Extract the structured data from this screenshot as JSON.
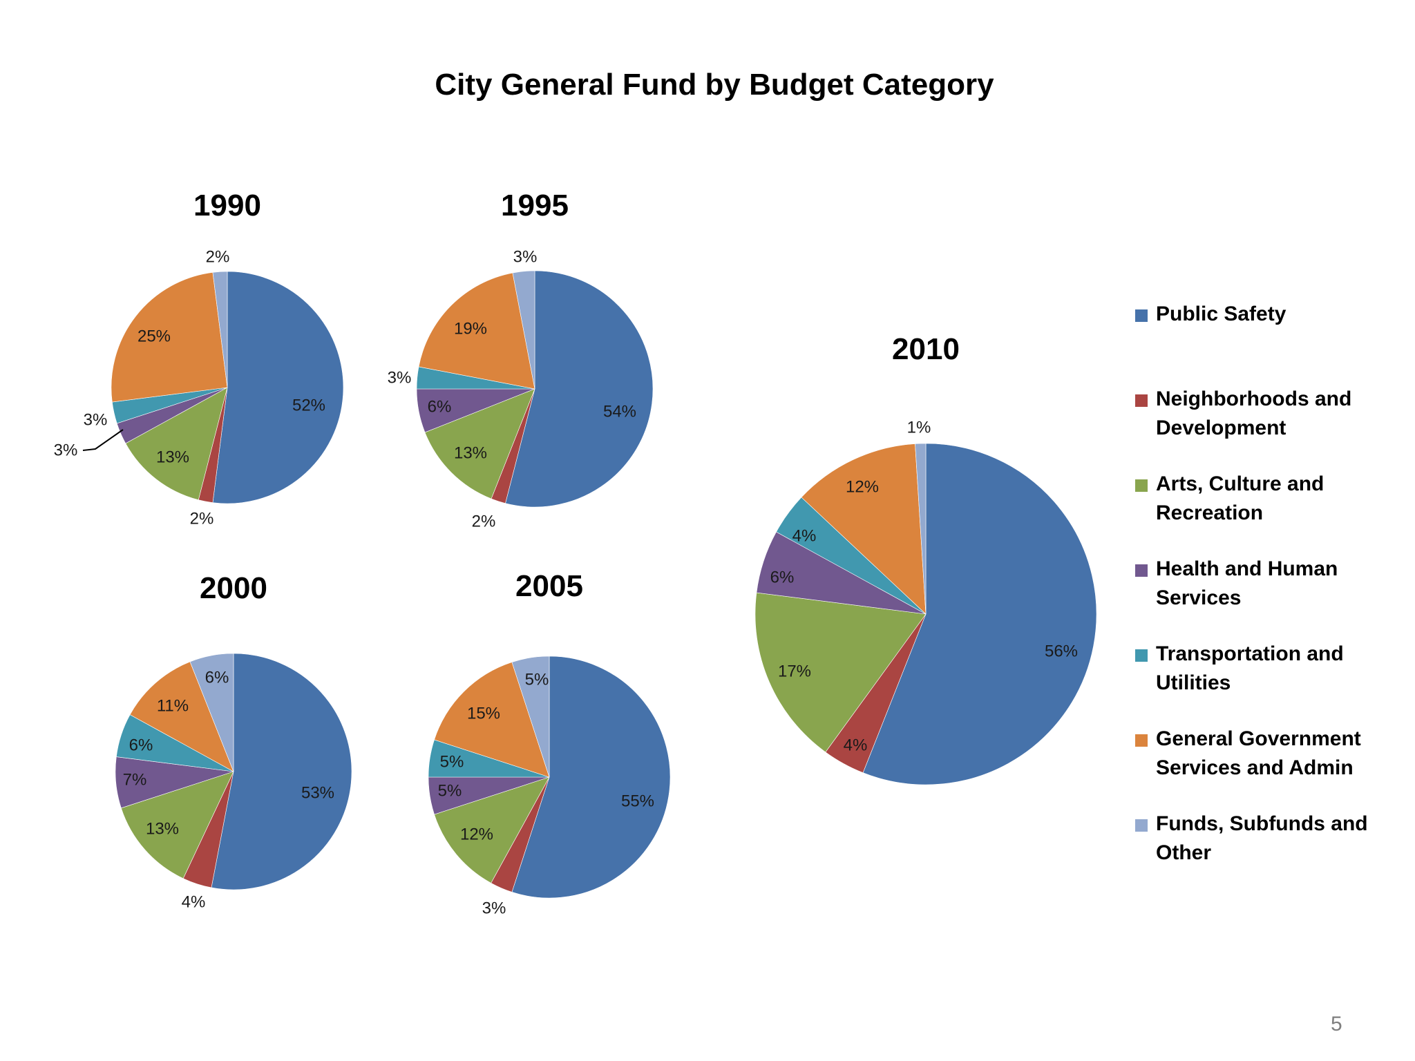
{
  "page": {
    "title": "City General Fund by Budget Category",
    "page_number": "5"
  },
  "colors": {
    "public_safety": "#4672AA",
    "neighborhoods": "#AA4542",
    "arts": "#89A54E",
    "health": "#71588F",
    "transportation": "#4198AF",
    "general_gov": "#DB843D",
    "funds": "#93A9CF"
  },
  "legend": {
    "items": [
      {
        "label_lines": [
          "Public Safety"
        ],
        "color": "#4672AA"
      },
      {
        "label_lines": [
          "Neighborhoods and",
          "Development"
        ],
        "color": "#AA4542"
      },
      {
        "label_lines": [
          "Arts, Culture and",
          "Recreation"
        ],
        "color": "#89A54E"
      },
      {
        "label_lines": [
          "Health and Human",
          "Services"
        ],
        "color": "#71588F"
      },
      {
        "label_lines": [
          "Transportation and",
          "Utilities"
        ],
        "color": "#4198AF"
      },
      {
        "label_lines": [
          "General Government",
          "Services and Admin"
        ],
        "color": "#DB843D"
      },
      {
        "label_lines": [
          "Funds, Subfunds and",
          "Other"
        ],
        "color": "#93A9CF"
      }
    ]
  },
  "chart_data": [
    {
      "type": "pie",
      "title": "1990",
      "categories": [
        "Public Safety",
        "Neighborhoods and Development",
        "Arts, Culture and Recreation",
        "Health and Human Services",
        "Transportation and Utilities",
        "General Government Services and Admin",
        "Funds, Subfunds and Other"
      ],
      "values": [
        52,
        2,
        13,
        3,
        3,
        25,
        2
      ],
      "labels": [
        "52%",
        "2%",
        "13%",
        "3%",
        "3%",
        "25%",
        "2%"
      ]
    },
    {
      "type": "pie",
      "title": "1995",
      "categories": [
        "Public Safety",
        "Neighborhoods and Development",
        "Arts, Culture and Recreation",
        "Health and Human Services",
        "Transportation and Utilities",
        "General Government Services and Admin",
        "Funds, Subfunds and Other"
      ],
      "values": [
        54,
        2,
        13,
        6,
        3,
        19,
        3
      ],
      "labels": [
        "54%",
        "2%",
        "13%",
        "6%",
        "3%",
        "19%",
        "3%"
      ]
    },
    {
      "type": "pie",
      "title": "2000",
      "categories": [
        "Public Safety",
        "Neighborhoods and Development",
        "Arts, Culture and Recreation",
        "Health and Human Services",
        "Transportation and Utilities",
        "General Government Services and Admin",
        "Funds, Subfunds and Other"
      ],
      "values": [
        53,
        4,
        13,
        7,
        6,
        11,
        6
      ],
      "labels": [
        "53%",
        "4%",
        "13%",
        "7%",
        "6%",
        "11%",
        "6%"
      ]
    },
    {
      "type": "pie",
      "title": "2005",
      "categories": [
        "Public Safety",
        "Neighborhoods and Development",
        "Arts, Culture and Recreation",
        "Health and Human Services",
        "Transportation and Utilities",
        "General Government Services and Admin",
        "Funds, Subfunds and Other"
      ],
      "values": [
        55,
        3,
        12,
        5,
        5,
        15,
        5
      ],
      "labels": [
        "55%",
        "3%",
        "12%",
        "5%",
        "5%",
        "15%",
        "5%"
      ]
    },
    {
      "type": "pie",
      "title": "2010",
      "categories": [
        "Public Safety",
        "Neighborhoods and Development",
        "Arts, Culture and Recreation",
        "Health and Human Services",
        "Transportation and Utilities",
        "General Government Services and Admin",
        "Funds, Subfunds and Other"
      ],
      "values": [
        56,
        4,
        17,
        6,
        4,
        12,
        1
      ],
      "labels": [
        "56%",
        "4%",
        "17%",
        "6%",
        "4%",
        "12%",
        "1%"
      ]
    }
  ]
}
